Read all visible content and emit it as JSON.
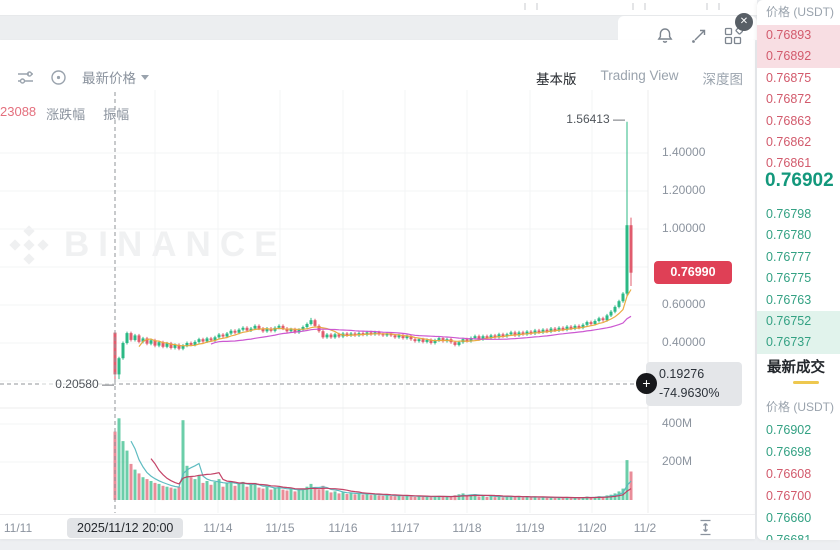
{
  "colors": {
    "up": "#2cb985",
    "down": "#e05c6e",
    "ma_fast": "#e9a83a",
    "ma_slow": "#c94fcf",
    "vol_ma_fast": "#56b8be",
    "vol_ma_slow": "#c13a60",
    "badge_red": "#df4056",
    "tab_underline": "#eec84f",
    "grid": "#f3f4f6",
    "crosshair": "#909498"
  },
  "toolbar": {
    "price_mode": "最新价格",
    "tabs": [
      "基本版",
      "Trading View",
      "深度图"
    ]
  },
  "legend": {
    "value": "23088",
    "change_label": "涨跌幅",
    "amplitude_label": "振幅"
  },
  "chart": {
    "watermark": "BINANCE",
    "high_marker": "1.56413 —",
    "low_marker": "0.20580 —",
    "price_badge": "0.76990",
    "crosshair_price": "0.19276",
    "crosshair_change": "-74.9630%",
    "crosshair_date": "2025/11/12 20:00",
    "plus_glyph": "+",
    "y_ticks": [
      "1.40000",
      "1.20000",
      "1.00000",
      "0.60000",
      "0.40000"
    ],
    "vol_ticks": [
      "400M",
      "200M"
    ]
  },
  "time_axis": {
    "labels": [
      "11/11",
      "11/14",
      "11/15",
      "11/16",
      "11/17",
      "11/18",
      "11/19",
      "11/20",
      "11/2"
    ]
  },
  "chart_data": {
    "type": "candlestick",
    "title": "",
    "x_tick_labels": [
      "11/11",
      "11/14",
      "11/15",
      "11/16",
      "11/17",
      "11/18",
      "11/19",
      "11/20",
      "11/2"
    ],
    "price_axis": {
      "ticks": [
        1.4,
        1.2,
        1.0,
        0.8,
        0.6,
        0.4,
        0.2
      ],
      "labeled": [
        1.4,
        1.2,
        1.0,
        0.6,
        0.4
      ]
    },
    "volume_axis_ticks_m": [
      400,
      200
    ],
    "visible_high": 1.56413,
    "visible_low": 0.2058,
    "last_price": 0.7699,
    "crosshair": {
      "price": 0.19276,
      "change_pct": -74.963,
      "time": "2025/11/12 20:00"
    },
    "first_open": 0.455,
    "wick_pad": 0.008,
    "closes": [
      0.235,
      0.32,
      0.4,
      0.452,
      0.416,
      0.44,
      0.406,
      0.424,
      0.396,
      0.414,
      0.386,
      0.404,
      0.38,
      0.398,
      0.374,
      0.39,
      0.37,
      0.386,
      0.4,
      0.39,
      0.406,
      0.42,
      0.408,
      0.424,
      0.414,
      0.43,
      0.444,
      0.434,
      0.45,
      0.464,
      0.454,
      0.47,
      0.48,
      0.466,
      0.476,
      0.49,
      0.476,
      0.462,
      0.476,
      0.464,
      0.48,
      0.49,
      0.476,
      0.462,
      0.472,
      0.456,
      0.47,
      0.484,
      0.5,
      0.52,
      0.49,
      0.462,
      0.43,
      0.444,
      0.43,
      0.446,
      0.434,
      0.45,
      0.44,
      0.45,
      0.44,
      0.452,
      0.444,
      0.456,
      0.446,
      0.456,
      0.446,
      0.44,
      0.45,
      0.44,
      0.43,
      0.44,
      0.426,
      0.436,
      0.42,
      0.41,
      0.42,
      0.406,
      0.416,
      0.4,
      0.414,
      0.426,
      0.41,
      0.42,
      0.404,
      0.39,
      0.404,
      0.42,
      0.41,
      0.426,
      0.436,
      0.42,
      0.436,
      0.426,
      0.44,
      0.43,
      0.446,
      0.436,
      0.446,
      0.456,
      0.44,
      0.456,
      0.446,
      0.46,
      0.45,
      0.466,
      0.456,
      0.47,
      0.46,
      0.476,
      0.466,
      0.48,
      0.47,
      0.486,
      0.476,
      0.49,
      0.48,
      0.496,
      0.51,
      0.5,
      0.516,
      0.53,
      0.52,
      0.545,
      0.565,
      0.59,
      0.62,
      0.66,
      1.02,
      0.77
    ],
    "volumes_m": [
      360,
      430,
      310,
      260,
      190,
      160,
      140,
      120,
      110,
      100,
      90,
      85,
      75,
      70,
      65,
      60,
      70,
      420,
      180,
      120,
      110,
      130,
      90,
      100,
      80,
      95,
      110,
      70,
      90,
      100,
      75,
      85,
      95,
      70,
      80,
      90,
      65,
      60,
      70,
      55,
      65,
      70,
      55,
      50,
      60,
      45,
      55,
      60,
      70,
      85,
      60,
      55,
      75,
      50,
      40,
      45,
      35,
      40,
      32,
      38,
      30,
      35,
      28,
      33,
      26,
      30,
      24,
      22,
      28,
      22,
      20,
      25,
      20,
      24,
      18,
      16,
      22,
      16,
      20,
      15,
      18,
      22,
      16,
      20,
      15,
      25,
      30,
      35,
      20,
      28,
      30,
      18,
      25,
      16,
      22,
      15,
      20,
      14,
      18,
      22,
      15,
      20,
      14,
      18,
      13,
      17,
      12,
      16,
      12,
      15,
      11,
      14,
      11,
      14,
      10,
      13,
      10,
      14,
      18,
      12,
      16,
      20,
      14,
      24,
      28,
      35,
      45,
      60,
      210,
      150
    ],
    "special_wicks": {
      "0": {
        "l": 0.2058
      },
      "1": {
        "l": 0.21
      },
      "49": {
        "h": 0.532
      },
      "128": {
        "h": 1.56413,
        "l": 0.648
      },
      "129": {
        "h": 1.06,
        "l": 0.7
      }
    },
    "ma_periods_price": [
      7,
      25
    ],
    "ma_periods_volume": [
      5,
      10
    ]
  },
  "order_book": {
    "header": "价格 (USDT)",
    "asks": [
      "0.76893",
      "0.76892",
      "0.76875",
      "0.76872",
      "0.76863",
      "0.76862",
      "0.76861"
    ],
    "asks_highlighted": [
      0,
      1
    ],
    "last_price": "0.76902",
    "bids": [
      "0.76798",
      "0.76780",
      "0.76777",
      "0.76775",
      "0.76763",
      "0.76752",
      "0.76737"
    ],
    "bids_highlighted": [
      5,
      6
    ]
  },
  "trades": {
    "tab": "最新成交",
    "header": "价格 (USDT)",
    "rows": [
      {
        "price": "0.76902",
        "side": "up"
      },
      {
        "price": "0.76698",
        "side": "up"
      },
      {
        "price": "0.76608",
        "side": "down"
      },
      {
        "price": "0.76700",
        "side": "down"
      },
      {
        "price": "0.76660",
        "side": "up"
      },
      {
        "price": "0.76681",
        "side": "up"
      }
    ]
  },
  "window": {
    "close_glyph": "✕"
  }
}
